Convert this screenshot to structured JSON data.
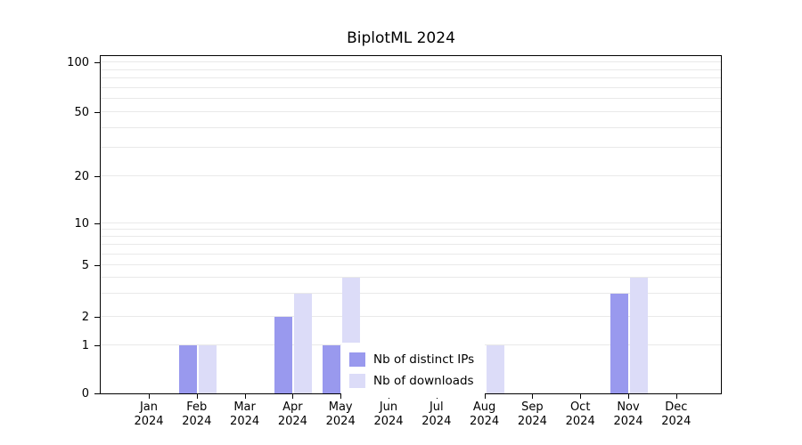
{
  "title": "BiplotML 2024",
  "chart_data": {
    "type": "bar",
    "title": "BiplotML 2024",
    "categories": [
      "Jan",
      "Feb",
      "Mar",
      "Apr",
      "May",
      "Jun",
      "Jul",
      "Aug",
      "Sep",
      "Oct",
      "Nov",
      "Dec"
    ],
    "year_label": "2024",
    "series": [
      {
        "name": "Nb of distinct IPs",
        "color": "#9999ee",
        "values": [
          0,
          1,
          0,
          2,
          1,
          0,
          0,
          1,
          0,
          0,
          3,
          0
        ]
      },
      {
        "name": "Nb of downloads",
        "color": "#dcdcf8",
        "values": [
          0,
          1,
          0,
          3,
          4,
          0,
          0,
          1,
          0,
          0,
          4,
          0
        ]
      }
    ],
    "y_ticks": [
      0,
      1,
      2,
      5,
      10,
      20,
      50,
      100
    ],
    "minor_gridline_values": [
      1,
      2,
      3,
      4,
      5,
      6,
      7,
      8,
      9,
      10,
      20,
      30,
      40,
      50,
      60,
      70,
      80,
      90,
      100
    ],
    "ylabel": "",
    "xlabel": "",
    "scale": "log-like",
    "grid": true,
    "legend_position": "bottom-center"
  }
}
